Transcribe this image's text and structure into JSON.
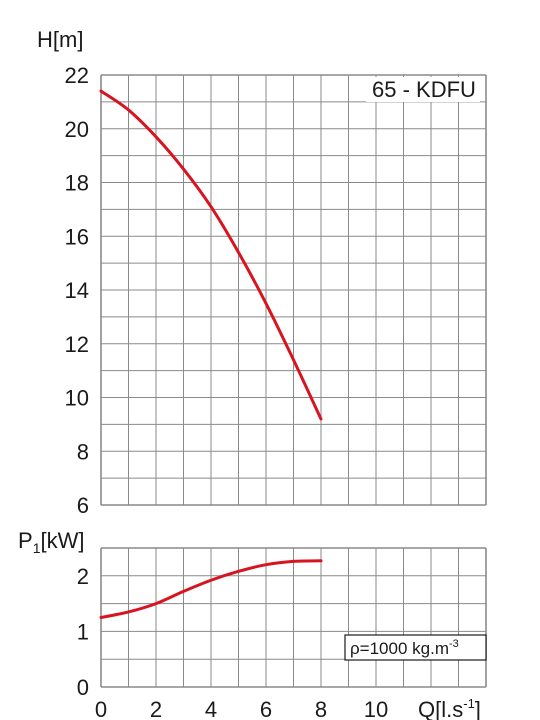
{
  "chart_data": [
    {
      "type": "line",
      "ylabel": "H[m]",
      "annotation": "65 - KDFU",
      "xlim": [
        0,
        14
      ],
      "ylim": [
        6,
        22
      ],
      "yticks": [
        "6",
        "8",
        "10",
        "12",
        "14",
        "16",
        "18",
        "20",
        "22"
      ],
      "grid": true,
      "series": [
        {
          "color": "#d7141f",
          "x": [
            0,
            1,
            2,
            3,
            4,
            5,
            6,
            7,
            8
          ],
          "y": [
            21.4,
            20.7,
            19.7,
            18.5,
            17.1,
            15.4,
            13.5,
            11.4,
            9.2
          ]
        }
      ]
    },
    {
      "type": "line",
      "ylabel": "P",
      "ylabel_sub": "1",
      "ylabel_unit": "[kW]",
      "xlabel": "Q[l.s",
      "xlabel_sup": "-1",
      "xlabel_close": "]",
      "xlim": [
        0,
        14
      ],
      "ylim": [
        0,
        2.5
      ],
      "yticks": [
        "0",
        "1",
        "2"
      ],
      "xticks": [
        "0",
        "2",
        "4",
        "6",
        "8",
        "10"
      ],
      "grid": true,
      "annotation": {
        "text": "ρ=1000 kg.m",
        "sup": "-3"
      },
      "series": [
        {
          "color": "#d7141f",
          "x": [
            0,
            1,
            2,
            3,
            4,
            5,
            6,
            7,
            8
          ],
          "y": [
            1.25,
            1.35,
            1.5,
            1.72,
            1.92,
            2.08,
            2.2,
            2.26,
            2.27
          ]
        }
      ]
    }
  ]
}
